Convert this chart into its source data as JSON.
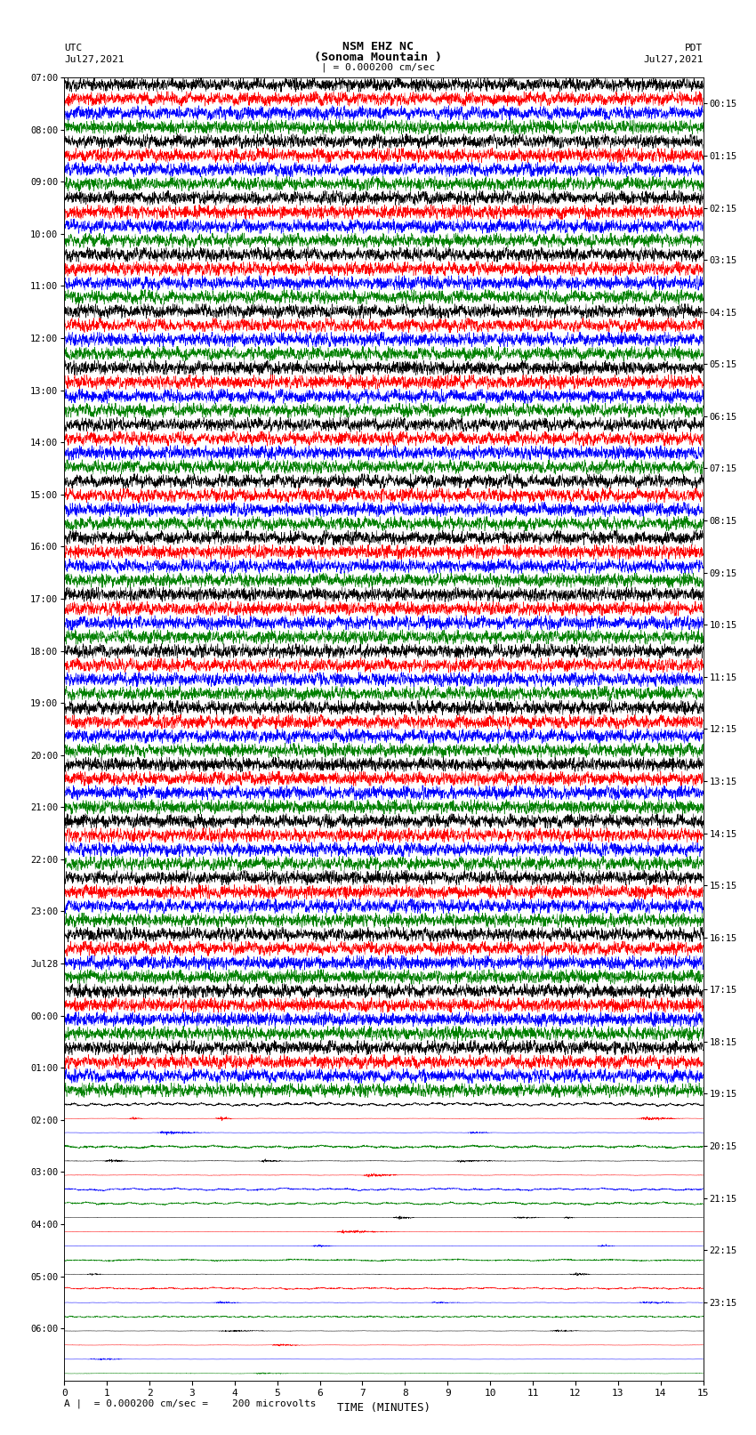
{
  "title_line1": "NSM EHZ NC",
  "title_line2": "(Sonoma Mountain )",
  "scale_label": "| = 0.000200 cm/sec",
  "left_label": "UTC",
  "left_date": "Jul27,2021",
  "right_label": "PDT",
  "right_date": "Jul27,2021",
  "xlabel": "TIME (MINUTES)",
  "footnote": "A |  = 0.000200 cm/sec =    200 microvolts",
  "left_times": [
    "07:00",
    "08:00",
    "09:00",
    "10:00",
    "11:00",
    "12:00",
    "13:00",
    "14:00",
    "15:00",
    "16:00",
    "17:00",
    "18:00",
    "19:00",
    "20:00",
    "21:00",
    "22:00",
    "23:00",
    "Jul28",
    "00:00",
    "01:00",
    "02:00",
    "03:00",
    "04:00",
    "05:00",
    "06:00"
  ],
  "right_times": [
    "00:15",
    "01:15",
    "02:15",
    "03:15",
    "04:15",
    "05:15",
    "06:15",
    "07:15",
    "08:15",
    "09:15",
    "10:15",
    "11:15",
    "12:15",
    "13:15",
    "14:15",
    "15:15",
    "16:15",
    "17:15",
    "18:15",
    "19:15",
    "20:15",
    "21:15",
    "22:15",
    "23:15"
  ],
  "num_rows": 92,
  "colors": [
    "black",
    "red",
    "blue",
    "green"
  ],
  "bg_color": "white",
  "high_amplitude_cutoff": 72,
  "npts": 3600
}
